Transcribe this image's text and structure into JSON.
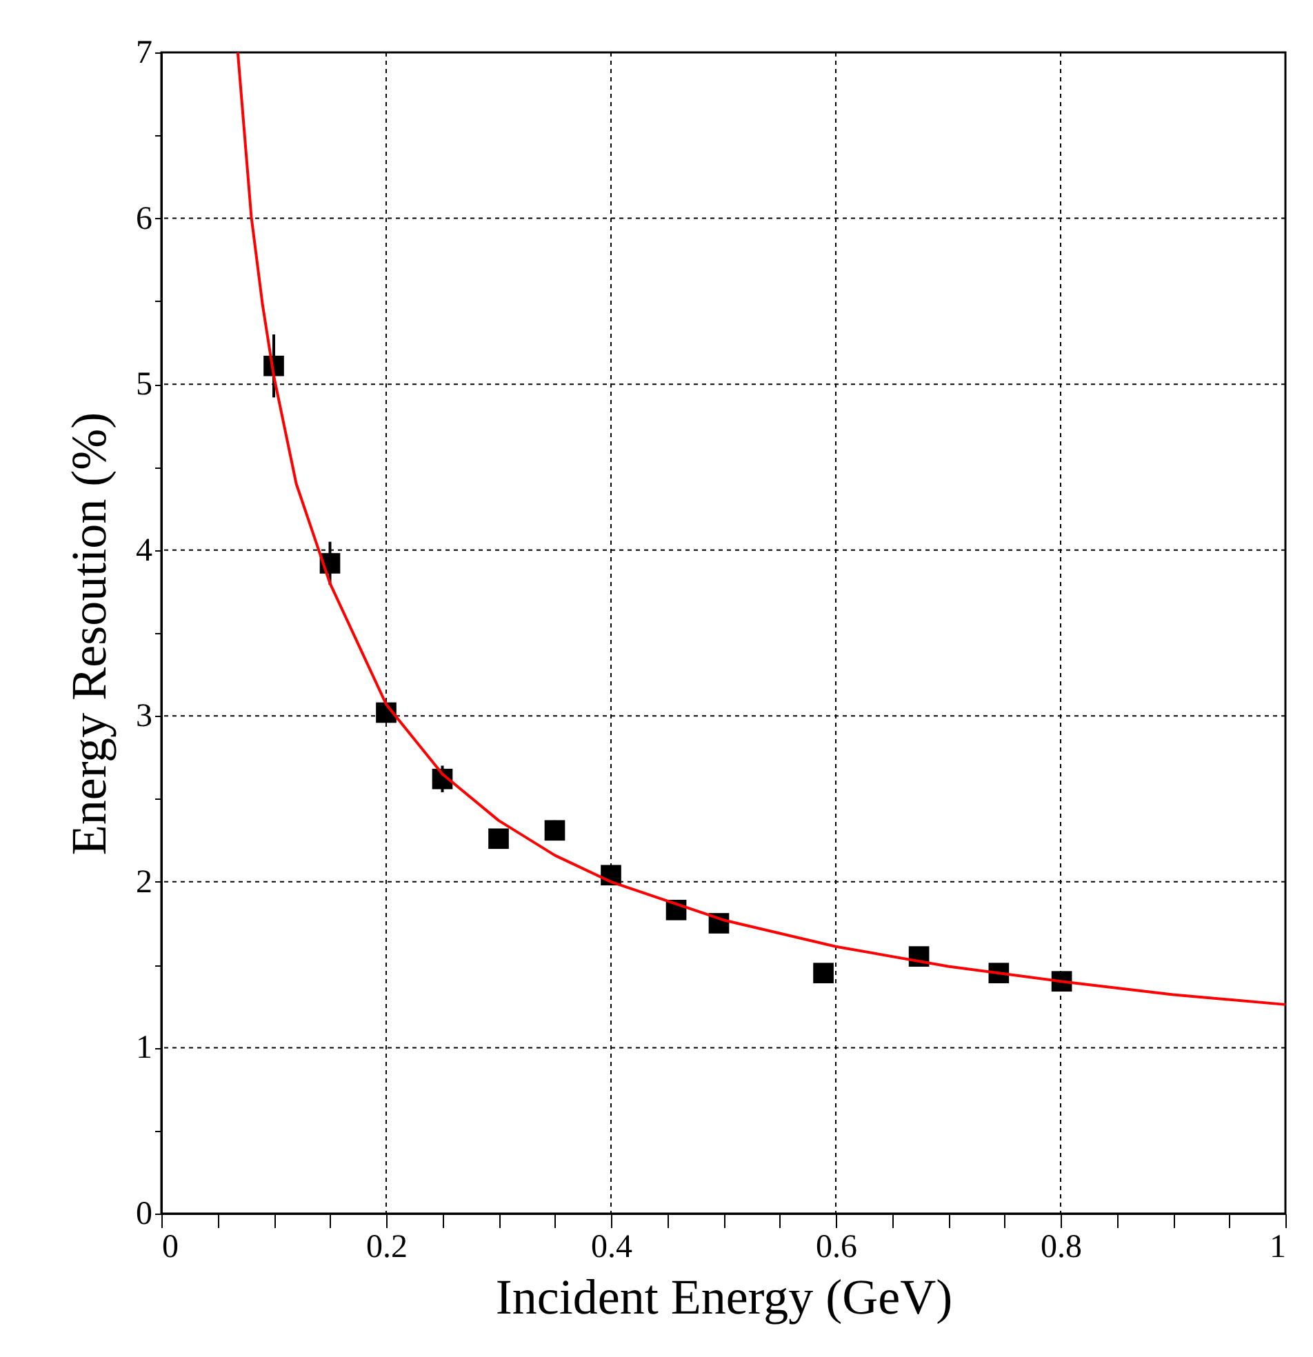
{
  "chart_data": {
    "type": "scatter",
    "xlabel": "Incident Energy (GeV)",
    "ylabel": "Energy Resoution (%)",
    "xlim": [
      0,
      1
    ],
    "ylim": [
      0,
      7
    ],
    "xticks": [
      0,
      {
        "value": 0.05,
        "label": null
      },
      0.2,
      {
        "value": 0.1,
        "label": null
      },
      {
        "value": 0.15,
        "label": null
      },
      {
        "value": 0.25,
        "label": null
      },
      {
        "value": 0.3,
        "label": null
      },
      {
        "value": 0.35,
        "label": null
      },
      0.4,
      {
        "value": 0.45,
        "label": null
      },
      {
        "value": 0.5,
        "label": null
      },
      {
        "value": 0.55,
        "label": null
      },
      0.6,
      {
        "value": 0.65,
        "label": null
      },
      {
        "value": 0.7,
        "label": null
      },
      {
        "value": 0.75,
        "label": null
      },
      0.8,
      {
        "value": 0.85,
        "label": null
      },
      {
        "value": 0.9,
        "label": null
      },
      {
        "value": 0.95,
        "label": null
      },
      1
    ],
    "yticks": [
      0,
      {
        "value": 0.5,
        "label": null
      },
      1,
      {
        "value": 1.5,
        "label": null
      },
      2,
      {
        "value": 2.5,
        "label": null
      },
      3,
      {
        "value": 3.5,
        "label": null
      },
      4,
      {
        "value": 4.5,
        "label": null
      },
      5,
      {
        "value": 5.5,
        "label": null
      },
      6,
      {
        "value": 6.5,
        "label": null
      },
      7
    ],
    "grid": true,
    "marker": "square",
    "series": [
      {
        "color": "#000000",
        "x": [
          0.1,
          0.15,
          0.2,
          0.25,
          0.3,
          0.35,
          0.4,
          0.458,
          0.496,
          0.589,
          0.674,
          0.745,
          0.801
        ],
        "values": [
          5.11,
          3.92,
          3.02,
          2.62,
          2.26,
          2.31,
          2.04,
          1.83,
          1.75,
          1.45,
          1.55,
          1.45,
          1.4
        ],
        "errors": [
          0.19,
          0.13,
          0.05,
          0.08,
          0.05,
          0.06,
          0.04,
          0.04,
          0.04,
          0.04,
          0.04,
          0.04,
          0.04
        ]
      },
      {
        "type": "line",
        "color": "#ff0000",
        "marker": "none",
        "x": [
          0.068,
          0.08,
          0.09,
          0.1,
          0.12,
          0.15,
          0.2,
          0.25,
          0.3,
          0.35,
          0.4,
          0.5,
          0.6,
          0.7,
          0.8,
          0.9,
          1.0
        ],
        "values": [
          7.0,
          6.01,
          5.48,
          5.05,
          4.4,
          3.8,
          3.07,
          2.65,
          2.37,
          2.16,
          2.0,
          1.77,
          1.61,
          1.49,
          1.4,
          1.32,
          1.26
        ]
      }
    ]
  }
}
